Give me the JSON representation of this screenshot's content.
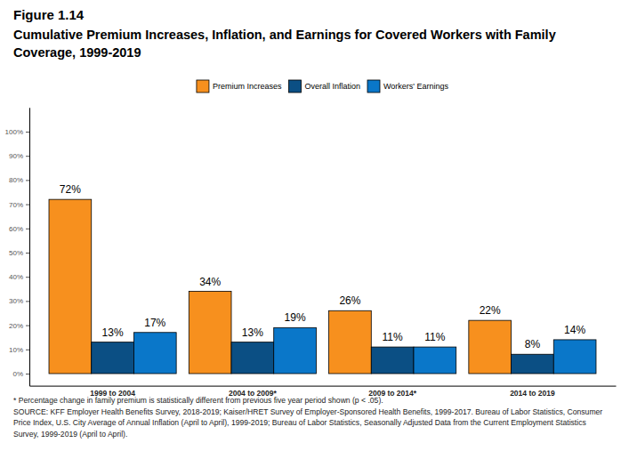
{
  "chart_data": {
    "type": "bar",
    "figure": "Figure 1.14",
    "title": "Cumulative Premium Increases, Inflation, and Earnings for Covered Workers with Family Coverage, 1999-2019",
    "notes": [
      "* Percentage change in family premium is statistically different from previous five year period shown (p < .05).",
      "SOURCE: KFF Employer Health Benefits Survey, 2018-2019; Kaiser/HRET Survey of Employer-Sponsored Health Benefits, 1999-2017. Bureau of Labor Statistics, Consumer Price Index, U.S. City Average of Annual Inflation (April to April), 1999-2019; Bureau of Labor Statistics, Seasonally Adjusted Data from the Current Employment Statistics Survey, 1999-2019 (April to April)."
    ],
    "categories": [
      "1999 to 2004",
      "2004 to 2009*",
      "2009 to 2014*",
      "2014 to 2019"
    ],
    "series": [
      {
        "name": "Premium Increases",
        "color": "#f7901e",
        "values": [
          72,
          34,
          26,
          22
        ],
        "value_labels": [
          "72%",
          "34%",
          "26%",
          "22%"
        ]
      },
      {
        "name": "Overall Inflation",
        "color": "#0b4f84",
        "values": [
          13,
          13,
          11,
          8
        ],
        "value_labels": [
          "13%",
          "13%",
          "11%",
          "8%"
        ]
      },
      {
        "name": "Workers' Earnings",
        "color": "#0a77c9",
        "values": [
          17,
          19,
          11,
          14
        ],
        "value_labels": [
          "17%",
          "19%",
          "11%",
          "14%"
        ]
      }
    ],
    "ylim": [
      -5,
      110
    ],
    "yticks": [
      {
        "value": 0,
        "label": "0%"
      },
      {
        "value": 10,
        "label": "10%"
      },
      {
        "value": 20,
        "label": "20%"
      },
      {
        "value": 30,
        "label": "30%"
      },
      {
        "value": 40,
        "label": "40%"
      },
      {
        "value": 50,
        "label": "50%"
      },
      {
        "value": 60,
        "label": "60%"
      },
      {
        "value": 70,
        "label": "70%"
      },
      {
        "value": 80,
        "label": "80%"
      },
      {
        "value": 90,
        "label": "90%"
      },
      {
        "value": 100,
        "label": "100%"
      }
    ],
    "grid": false,
    "legend": "top",
    "data_labels": true
  }
}
